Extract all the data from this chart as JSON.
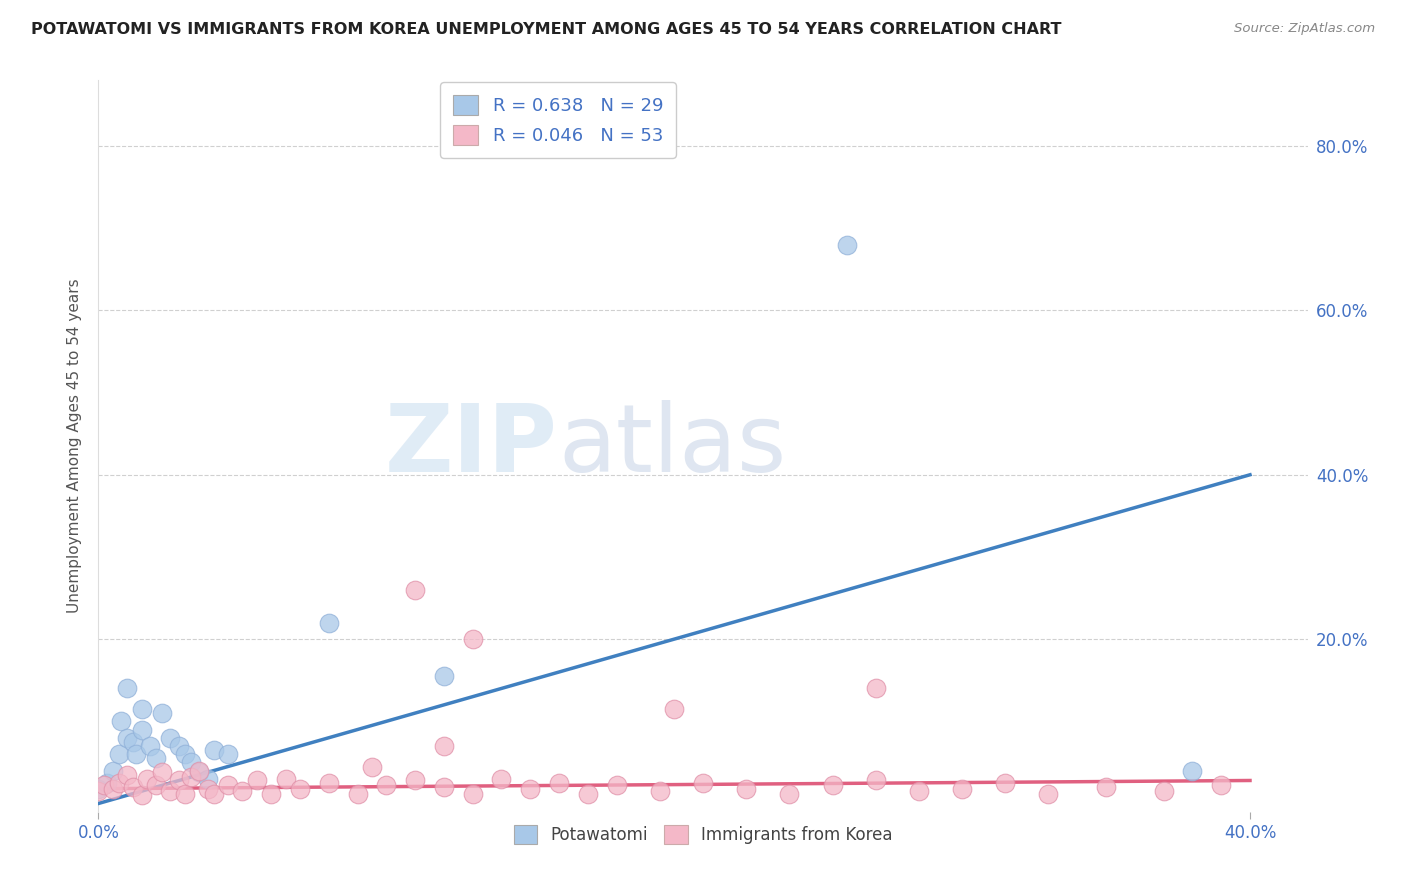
{
  "title": "POTAWATOMI VS IMMIGRANTS FROM KOREA UNEMPLOYMENT AMONG AGES 45 TO 54 YEARS CORRELATION CHART",
  "source": "Source: ZipAtlas.com",
  "ylabel": "Unemployment Among Ages 45 to 54 years",
  "xlim": [
    0.0,
    0.42
  ],
  "ylim": [
    -0.01,
    0.88
  ],
  "blue_color": "#a8c8e8",
  "pink_color": "#f4b8c8",
  "blue_line_color": "#4080c0",
  "pink_line_color": "#e06080",
  "blue_line_x": [
    0.0,
    0.4
  ],
  "blue_line_y": [
    0.0,
    0.4
  ],
  "pink_line_x": [
    0.0,
    0.4
  ],
  "pink_line_y": [
    0.018,
    0.028
  ],
  "blue_scatter_x": [
    0.0,
    0.003,
    0.005,
    0.007,
    0.008,
    0.01,
    0.01,
    0.012,
    0.013,
    0.015,
    0.015,
    0.018,
    0.02,
    0.022,
    0.025,
    0.028,
    0.03,
    0.032,
    0.035,
    0.038,
    0.04,
    0.045,
    0.08,
    0.12,
    0.26,
    0.38
  ],
  "blue_scatter_y": [
    0.018,
    0.025,
    0.04,
    0.06,
    0.1,
    0.08,
    0.14,
    0.075,
    0.06,
    0.115,
    0.09,
    0.07,
    0.055,
    0.11,
    0.08,
    0.07,
    0.06,
    0.05,
    0.038,
    0.03,
    0.065,
    0.06,
    0.22,
    0.155,
    0.68,
    0.04
  ],
  "pink_scatter_x": [
    0.0,
    0.002,
    0.005,
    0.007,
    0.01,
    0.012,
    0.015,
    0.017,
    0.02,
    0.022,
    0.025,
    0.028,
    0.03,
    0.032,
    0.035,
    0.038,
    0.04,
    0.045,
    0.05,
    0.055,
    0.06,
    0.065,
    0.07,
    0.08,
    0.09,
    0.1,
    0.11,
    0.12,
    0.13,
    0.14,
    0.15,
    0.16,
    0.17,
    0.18,
    0.195,
    0.21,
    0.225,
    0.24,
    0.255,
    0.27,
    0.285,
    0.3,
    0.315,
    0.33,
    0.35,
    0.37,
    0.39,
    0.27,
    0.11,
    0.13,
    0.2,
    0.095,
    0.12
  ],
  "pink_scatter_y": [
    0.015,
    0.022,
    0.018,
    0.025,
    0.035,
    0.02,
    0.01,
    0.03,
    0.022,
    0.038,
    0.015,
    0.028,
    0.012,
    0.032,
    0.04,
    0.018,
    0.012,
    0.022,
    0.015,
    0.028,
    0.012,
    0.03,
    0.018,
    0.025,
    0.012,
    0.022,
    0.028,
    0.02,
    0.012,
    0.03,
    0.018,
    0.025,
    0.012,
    0.022,
    0.015,
    0.025,
    0.018,
    0.012,
    0.022,
    0.028,
    0.015,
    0.018,
    0.025,
    0.012,
    0.02,
    0.015,
    0.022,
    0.14,
    0.26,
    0.2,
    0.115,
    0.045,
    0.07
  ],
  "ytick_positions": [
    0.0,
    0.2,
    0.4,
    0.6,
    0.8
  ],
  "ytick_labels": [
    "",
    "20.0%",
    "40.0%",
    "60.0%",
    "80.0%"
  ],
  "watermark_zip": "ZIP",
  "watermark_atlas": "atlas",
  "background_color": "#ffffff",
  "grid_color": "#d0d0d0",
  "title_color": "#222222",
  "source_color": "#888888",
  "axis_label_color": "#555555",
  "tick_color": "#4472c4",
  "legend_text_color": "#222222",
  "legend_value_color": "#4472c4"
}
